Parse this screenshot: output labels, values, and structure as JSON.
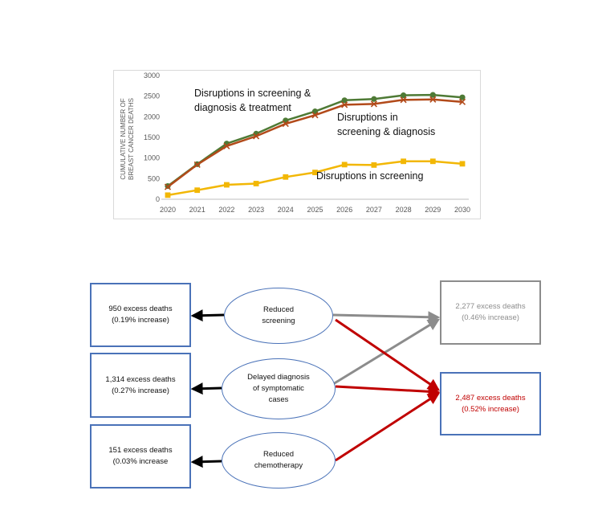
{
  "chart_data": {
    "type": "line",
    "x": [
      2020,
      2021,
      2022,
      2023,
      2024,
      2025,
      2026,
      2027,
      2028,
      2029,
      2030
    ],
    "ylim": [
      0,
      3000
    ],
    "yticks": [
      0,
      500,
      1000,
      1500,
      2000,
      2500,
      3000
    ],
    "ylabel": [
      "CUMULATIVE NUMBER OF",
      "BREAST CANCER DEATHS"
    ],
    "xlabel": "",
    "grid": false,
    "series": [
      {
        "name": "Disruptions in screening & diagnosis & treatment",
        "name_lines": [
          "Disruptions in screening &",
          "diagnosis & treatment"
        ],
        "values": [
          320,
          850,
          1350,
          1590,
          1910,
          2130,
          2400,
          2430,
          2520,
          2530,
          2470
        ],
        "color": "#4e7a35",
        "marker": "circle"
      },
      {
        "name": "Disruptions in screening & diagnosis",
        "name_lines": [
          "Disruptions in",
          "screening & diagnosis"
        ],
        "values": [
          300,
          840,
          1290,
          1530,
          1830,
          2040,
          2290,
          2310,
          2410,
          2420,
          2360
        ],
        "color": "#b24a1a",
        "marker": "x"
      },
      {
        "name": "Disruptions in screening",
        "name_lines": [
          "Disruptions in screening"
        ],
        "values": [
          100,
          220,
          350,
          380,
          540,
          650,
          840,
          830,
          920,
          920,
          860
        ],
        "color": "#f2b705",
        "marker": "square"
      }
    ]
  },
  "diagram": {
    "left_boxes": [
      {
        "line1": "950 excess deaths",
        "line2": "(0.19% increase)"
      },
      {
        "line1": "1,314 excess deaths",
        "line2": "(0.27% increase)"
      },
      {
        "line1": "151 excess deaths",
        "line2": "(0.03% increase"
      }
    ],
    "ellipses": [
      {
        "lines": [
          "Reduced",
          "screening"
        ]
      },
      {
        "lines": [
          "Delayed diagnosis",
          "of symptomatic",
          "cases"
        ]
      },
      {
        "lines": [
          "Reduced",
          "chemotherapy"
        ]
      }
    ],
    "right_boxes": [
      {
        "line1": "2,277 excess deaths",
        "line2": "(0.46% increase)",
        "color": "#8c8c8c"
      },
      {
        "line1": "2,487 excess deaths",
        "line2": "(0.52% increase)",
        "color": "#c00000"
      }
    ],
    "arrow_colors": {
      "black": "#000000",
      "gray": "#8c8c8c",
      "red": "#c00000"
    }
  }
}
